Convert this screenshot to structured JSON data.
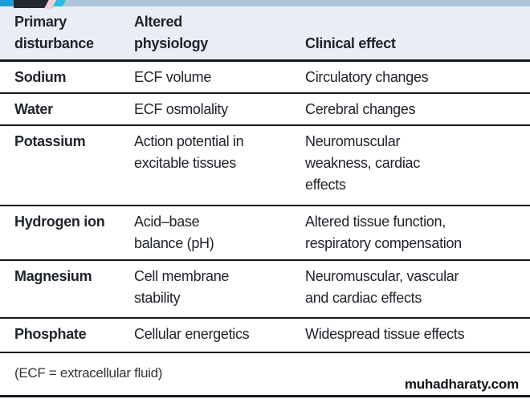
{
  "colors": {
    "accent_teal": "#1f9cd6",
    "accent_navy": "#232831",
    "accent_cyan": "#2fb9e3",
    "accent_pink": "#f3cdd9",
    "topbar_steel_blue": "#adc5da",
    "header_background": "#e9edf4",
    "rule_color": "#141920",
    "text_color": "#20242b"
  },
  "table": {
    "columns": [
      {
        "label": "Primary\ndisturbance"
      },
      {
        "label": "Altered\nphysiology"
      },
      {
        "label": "Clinical effect"
      }
    ],
    "rows": [
      {
        "disturbance": "Sodium",
        "physiology": "ECF volume",
        "effect": "Circulatory changes"
      },
      {
        "disturbance": "Water",
        "physiology": "ECF osmolality",
        "effect": "Cerebral changes"
      },
      {
        "disturbance": "Potassium",
        "physiology": "Action potential in\nexcitable tissues",
        "effect": "Neuromuscular\nweakness, cardiac\neffects"
      },
      {
        "disturbance": "Hydrogen ion",
        "physiology": "Acid–base\nbalance (pH)",
        "effect": "Altered tissue function,\nrespiratory compensation"
      },
      {
        "disturbance": "Magnesium",
        "physiology": "Cell membrane\nstability",
        "effect": "Neuromuscular, vascular\nand cardiac effects"
      },
      {
        "disturbance": "Phosphate",
        "physiology": "Cellular energetics",
        "effect": "Widespread tissue effects"
      }
    ]
  },
  "footnote": "(ECF = extracellular fluid)",
  "watermark": "muhadharaty.com"
}
